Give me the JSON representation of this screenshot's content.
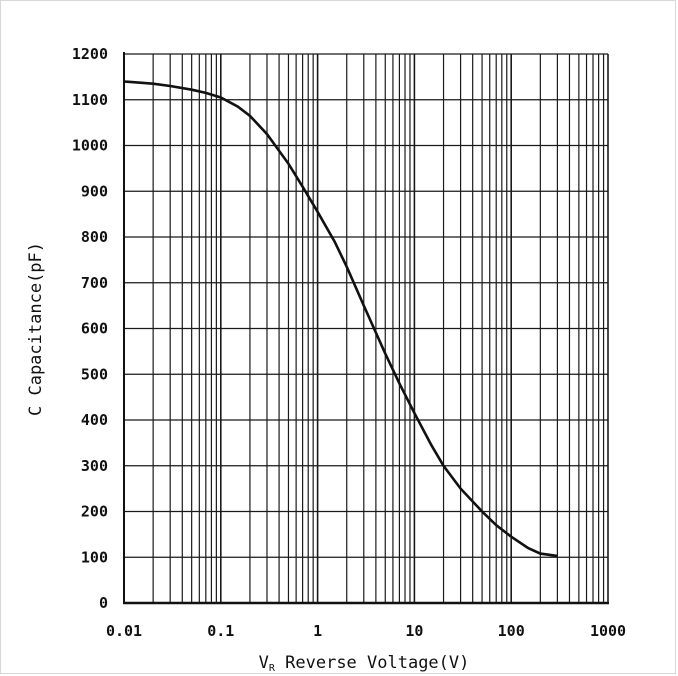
{
  "chart_data": {
    "type": "line",
    "title": "",
    "xlabel": {
      "prefix": "V",
      "subscript": "R",
      "text": " Reverse Voltage(V)"
    },
    "ylabel": "C Capacitance(pF)",
    "x_scale": "log",
    "xlim": [
      0.01,
      1000
    ],
    "ylim": [
      0,
      1200
    ],
    "x_ticks": [
      0.01,
      0.1,
      1,
      10,
      100,
      1000
    ],
    "x_tick_labels": [
      "0.01",
      "0.1",
      "1",
      "10",
      "100",
      "1000"
    ],
    "y_ticks": [
      0,
      100,
      200,
      300,
      400,
      500,
      600,
      700,
      800,
      900,
      1000,
      1100,
      1200
    ],
    "y_tick_labels": [
      "0",
      "100",
      "200",
      "300",
      "400",
      "500",
      "600",
      "700",
      "800",
      "900",
      "1000",
      "1100",
      "1200"
    ],
    "grid": true,
    "line_color": "#111111",
    "series": [
      {
        "x": [
          0.01,
          0.02,
          0.03,
          0.05,
          0.07,
          0.1,
          0.15,
          0.2,
          0.3,
          0.5,
          0.7,
          1,
          1.5,
          2,
          3,
          5,
          7,
          10,
          15,
          20,
          30,
          50,
          70,
          100,
          150,
          200,
          300
        ],
        "y": [
          1140,
          1135,
          1130,
          1122,
          1115,
          1105,
          1085,
          1065,
          1025,
          960,
          910,
          855,
          790,
          735,
          650,
          545,
          480,
          415,
          345,
          300,
          250,
          200,
          170,
          145,
          120,
          108,
          103
        ]
      }
    ]
  }
}
